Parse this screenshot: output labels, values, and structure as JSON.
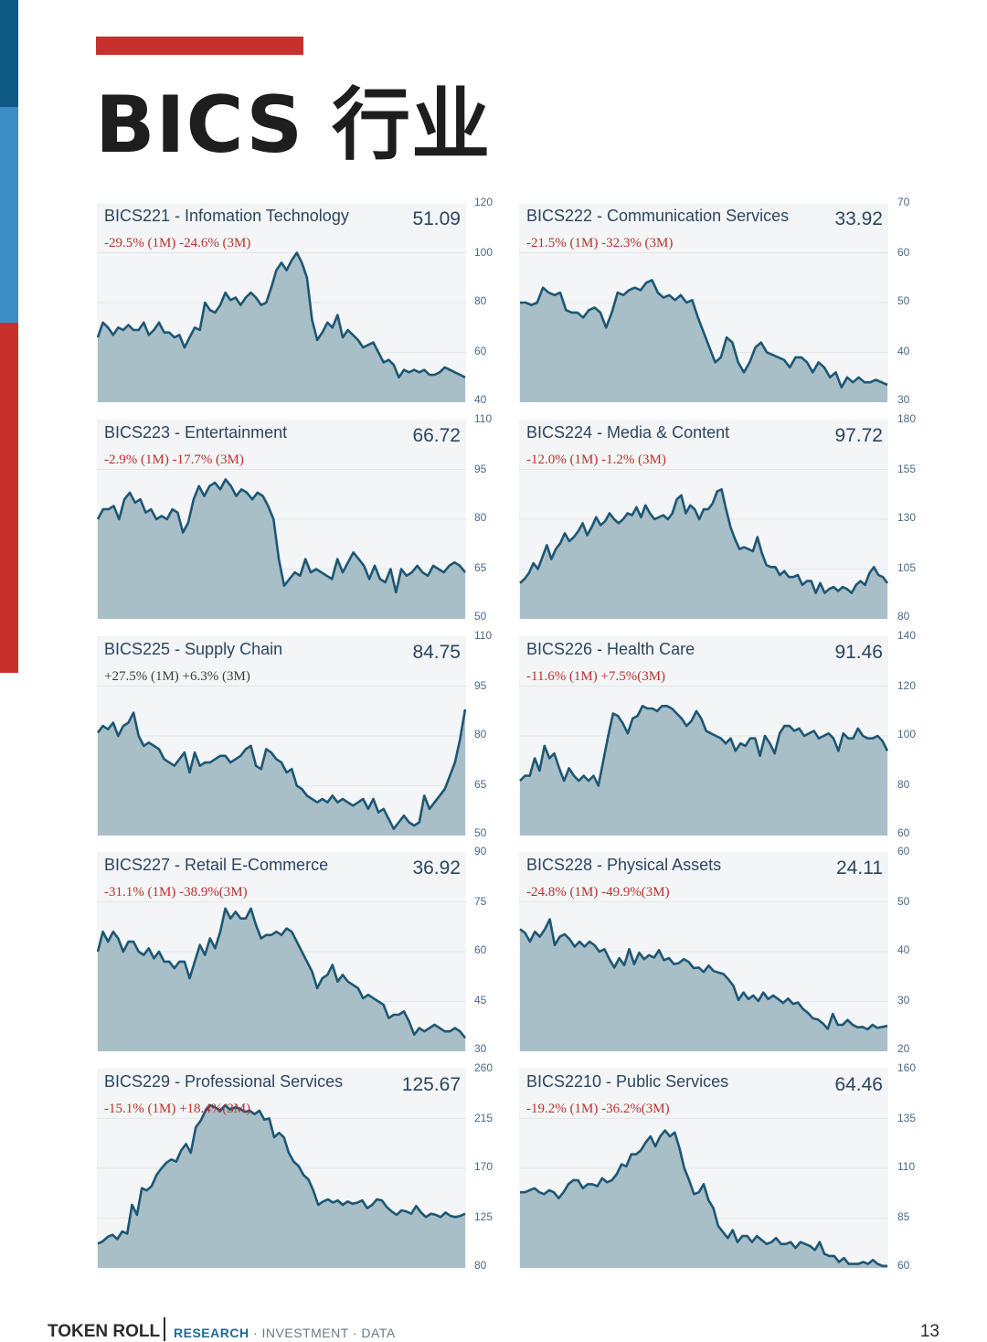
{
  "page": {
    "title": "BICS 行业",
    "footer": {
      "brand": "TOKEN ROLL",
      "tag_highlight": "RESEARCH",
      "tag_rest": " · INVESTMENT · DATA",
      "page_number": "13"
    },
    "colors": {
      "line": "#1d5775",
      "fill": "#a9bfc8",
      "panel_bg": "#f3f5f6",
      "negative": "#b8322e",
      "accent_red": "#c8302c",
      "accent_blue": "#0e5a84"
    }
  },
  "chart_data": [
    {
      "type": "area",
      "name": "BICS221 - Infomation Technology",
      "value": "51.09",
      "change": "-29.5% (1M) -24.6% (3M)",
      "change_sign": "neg",
      "y_ticks": [
        "120",
        "100",
        "80",
        "60",
        "40"
      ],
      "ylim": [
        40,
        120
      ],
      "values": [
        66,
        72,
        70,
        67,
        70,
        69,
        71,
        69,
        69,
        72,
        67,
        69,
        72,
        68,
        68,
        66,
        67,
        62,
        66,
        70,
        69,
        80,
        77,
        76,
        79,
        84,
        81,
        82,
        79,
        82,
        84,
        82,
        79,
        80,
        86,
        93,
        96,
        93,
        97,
        100,
        96,
        90,
        73,
        65,
        68,
        72,
        70,
        75,
        66,
        69,
        67,
        65,
        62,
        63,
        64,
        60,
        56,
        57,
        55,
        50,
        53,
        52,
        53,
        52,
        53,
        51,
        51,
        52,
        54,
        53,
        52,
        51,
        50
      ]
    },
    {
      "type": "area",
      "name": "BICS222 - Communication Services",
      "value": "33.92",
      "change": "-21.5% (1M) -32.3% (3M)",
      "change_sign": "neg",
      "y_ticks": [
        "70",
        "60",
        "50",
        "40",
        "30"
      ],
      "ylim": [
        30,
        70
      ],
      "values": [
        50,
        50,
        49.5,
        50,
        53,
        52,
        51.5,
        52,
        48.5,
        48,
        48,
        47,
        48.5,
        49,
        48,
        45,
        48,
        52,
        51.5,
        52.5,
        53,
        52.5,
        54,
        54.5,
        52,
        51,
        51.5,
        50.5,
        51.5,
        50,
        50.5,
        47,
        44,
        41,
        38,
        39,
        43,
        42,
        38,
        36,
        38,
        41,
        42,
        40,
        39.5,
        39,
        38.5,
        37,
        39,
        39,
        38,
        36,
        38,
        37,
        35,
        36,
        33,
        35,
        34,
        35,
        34,
        34,
        34.5,
        34,
        33.5
      ]
    },
    {
      "type": "area",
      "name": "BICS223 - Entertainment",
      "value": "66.72",
      "change": "-2.9% (1M) -17.7% (3M)",
      "change_sign": "neg",
      "y_ticks": [
        "110",
        "95",
        "80",
        "65",
        "50"
      ],
      "ylim": [
        50,
        110
      ],
      "values": [
        80,
        83,
        83,
        84,
        80,
        86,
        88,
        85,
        86,
        82,
        83,
        80,
        81,
        80,
        83,
        82,
        76,
        79,
        86,
        90,
        87,
        90,
        91,
        89,
        92,
        90,
        87,
        89,
        88,
        86,
        88,
        87,
        84,
        80,
        68,
        60,
        62,
        64,
        63,
        68,
        64,
        65,
        64,
        63,
        62,
        68,
        64,
        67,
        70,
        68,
        66,
        62,
        66,
        62,
        61,
        65,
        58,
        65,
        63,
        64,
        66,
        64,
        63,
        66,
        65,
        64,
        66,
        67,
        66,
        64
      ]
    },
    {
      "type": "area",
      "name": "BICS224 - Media & Content",
      "value": "97.72",
      "change": "-12.0% (1M) -1.2% (3M)",
      "change_sign": "neg",
      "y_ticks": [
        "180",
        "155",
        "130",
        "105",
        "80"
      ],
      "ylim": [
        80,
        180
      ],
      "values": [
        98,
        100,
        103,
        108,
        105,
        111,
        117,
        110,
        115,
        118,
        123,
        119,
        121,
        124,
        128,
        122,
        126,
        131,
        127,
        129,
        133,
        130,
        128,
        130,
        133,
        132,
        136,
        131,
        137,
        133,
        130,
        131,
        132,
        130,
        133,
        140,
        142,
        133,
        137,
        135,
        130,
        135,
        135,
        138,
        144,
        145,
        135,
        126,
        120,
        115,
        116,
        115,
        114,
        121,
        113,
        107,
        106,
        106,
        102,
        104,
        101,
        101,
        102,
        97,
        99,
        99,
        93,
        98,
        93,
        95,
        96,
        94,
        96,
        95,
        93,
        97,
        99,
        97,
        103,
        106,
        102,
        101,
        98
      ]
    },
    {
      "type": "area",
      "name": "BICS225 - Supply Chain",
      "value": "84.75",
      "change": "+27.5% (1M) +6.3% (3M)",
      "change_sign": "pos",
      "y_ticks": [
        "110",
        "95",
        "80",
        "65",
        "50"
      ],
      "ylim": [
        50,
        110
      ],
      "values": [
        81,
        83,
        82,
        84,
        80,
        83,
        84,
        87,
        80,
        77,
        78,
        77,
        76,
        73,
        72,
        71,
        73,
        75,
        69,
        75,
        71,
        72,
        72,
        73,
        74,
        74,
        72,
        73,
        74,
        76,
        77,
        71,
        70,
        76,
        75,
        73,
        72,
        69,
        70,
        65,
        64,
        62,
        61,
        60,
        61,
        60,
        62,
        60,
        61,
        60,
        59,
        60,
        61,
        58,
        61,
        57,
        58,
        55,
        52,
        54,
        56,
        54,
        53,
        54,
        62,
        58,
        60,
        62,
        64,
        68,
        72,
        79,
        88
      ]
    },
    {
      "type": "area",
      "name": "BICS226 - Health Care",
      "value": "91.46",
      "change": "-11.6% (1M) +7.5%(3M)",
      "change_sign": "neg",
      "y_ticks": [
        "140",
        "120",
        "100",
        "80",
        "60"
      ],
      "ylim": [
        60,
        140
      ],
      "values": [
        82,
        84,
        84,
        91,
        86,
        96,
        91,
        93,
        87,
        82,
        87,
        84,
        82,
        84,
        82,
        84,
        80,
        90,
        100,
        109,
        108,
        105,
        101,
        107,
        108,
        112,
        111,
        111,
        110,
        112,
        112,
        111,
        109,
        107,
        104,
        106,
        110,
        107,
        102,
        101,
        100,
        99,
        97,
        99,
        94,
        97,
        96,
        99,
        99,
        92,
        100,
        97,
        93,
        101,
        104,
        104,
        102,
        103,
        100,
        101,
        102,
        99,
        100,
        101,
        99,
        94,
        101,
        99,
        99,
        103,
        100,
        99,
        99,
        100,
        98,
        94
      ]
    },
    {
      "type": "area",
      "name": "BICS227 - Retail E-Commerce",
      "value": "36.92",
      "change": "-31.1% (1M) -38.9%(3M)",
      "change_sign": "neg",
      "y_ticks": [
        "90",
        "75",
        "60",
        "45",
        "30"
      ],
      "ylim": [
        30,
        90
      ],
      "values": [
        60,
        66,
        63,
        66,
        64,
        60,
        63,
        63,
        60,
        59,
        61,
        58,
        60,
        57,
        57,
        55,
        57,
        57,
        52,
        57,
        62,
        59,
        64,
        61,
        66,
        73,
        70,
        72,
        70,
        70,
        73,
        68,
        64,
        65,
        65,
        66,
        65,
        67,
        66,
        63,
        60,
        57,
        54,
        49,
        52,
        53,
        56,
        51,
        53,
        51,
        50,
        49,
        46,
        47,
        46,
        45,
        44,
        40,
        41,
        41,
        42,
        39,
        35,
        37,
        36,
        37,
        38,
        37,
        36,
        36,
        37,
        36,
        34
      ]
    },
    {
      "type": "area",
      "name": "BICS228 - Physical Assets",
      "value": "24.11",
      "change": "-24.8% (1M) -49.9%(3M)",
      "change_sign": "neg",
      "y_ticks": [
        "60",
        "50",
        "40",
        "30",
        "20"
      ],
      "ylim": [
        20,
        60
      ],
      "values": [
        44.5,
        43.8,
        42,
        44,
        43,
        44.5,
        46.5,
        41.3,
        43,
        43.5,
        42.5,
        41,
        42,
        41,
        42,
        41.3,
        40,
        40.5,
        38.5,
        36.8,
        38.7,
        37.3,
        40.5,
        37.5,
        39.8,
        38.5,
        39.3,
        38.8,
        40.3,
        38.3,
        38.7,
        37.5,
        37.7,
        38.5,
        37.9,
        36.7,
        36.8,
        35.9,
        37.2,
        36.1,
        35.8,
        35.5,
        34.4,
        33.1,
        30.3,
        31.8,
        30.5,
        31.2,
        30.1,
        31.8,
        30.5,
        31.2,
        30.5,
        29.7,
        30.6,
        29.5,
        29.8,
        28.5,
        27.7,
        26.6,
        26.4,
        25.6,
        24.5,
        27.5,
        25.3,
        25.3,
        26.3,
        25.3,
        24.8,
        24.9,
        24.4,
        25.3,
        24.7,
        24.9,
        25.1
      ]
    },
    {
      "type": "area",
      "name": "BICS229 - Professional Services",
      "value": "125.67",
      "change": "-15.1% (1M) +18.4%(3M)",
      "change_sign": "neg",
      "y_ticks": [
        "260",
        "215",
        "170",
        "125",
        "80"
      ],
      "ylim": [
        80,
        260
      ],
      "values": [
        102,
        104,
        108,
        110,
        106,
        113,
        111,
        137,
        128,
        152,
        150,
        154,
        164,
        170,
        175,
        178,
        176,
        186,
        192,
        184,
        207,
        213,
        222,
        231,
        225,
        222,
        228,
        223,
        225,
        224,
        221,
        222,
        219,
        222,
        214,
        215,
        198,
        202,
        198,
        184,
        176,
        172,
        164,
        160,
        150,
        137,
        140,
        142,
        139,
        141,
        137,
        140,
        138,
        139,
        141,
        134,
        137,
        142,
        141,
        135,
        131,
        128,
        132,
        131,
        129,
        136,
        130,
        126,
        129,
        128,
        126,
        130,
        127,
        126,
        127,
        129
      ]
    },
    {
      "type": "area",
      "name": "BICS2210 - Public Services",
      "value": "64.46",
      "change": "-19.2% (1M) -36.2%(3M)",
      "change_sign": "neg",
      "y_ticks": [
        "160",
        "135",
        "110",
        "85",
        "60"
      ],
      "ylim": [
        60,
        160
      ],
      "values": [
        98,
        98,
        99,
        100,
        98,
        97,
        99,
        98,
        95,
        98,
        102,
        104,
        104,
        100,
        102,
        102,
        101,
        105,
        103,
        104,
        107,
        112,
        111,
        117,
        117,
        119,
        123,
        126,
        121,
        126,
        129,
        126,
        128,
        120,
        110,
        104,
        97,
        98,
        102,
        94,
        90,
        81,
        78,
        75,
        79,
        73,
        76,
        76,
        73,
        76,
        74,
        72,
        73,
        75,
        72,
        72,
        73,
        70,
        73,
        72,
        71,
        69,
        73,
        67,
        66,
        66,
        63,
        65,
        62,
        62,
        62,
        63,
        62,
        64,
        62,
        61,
        61
      ]
    }
  ]
}
